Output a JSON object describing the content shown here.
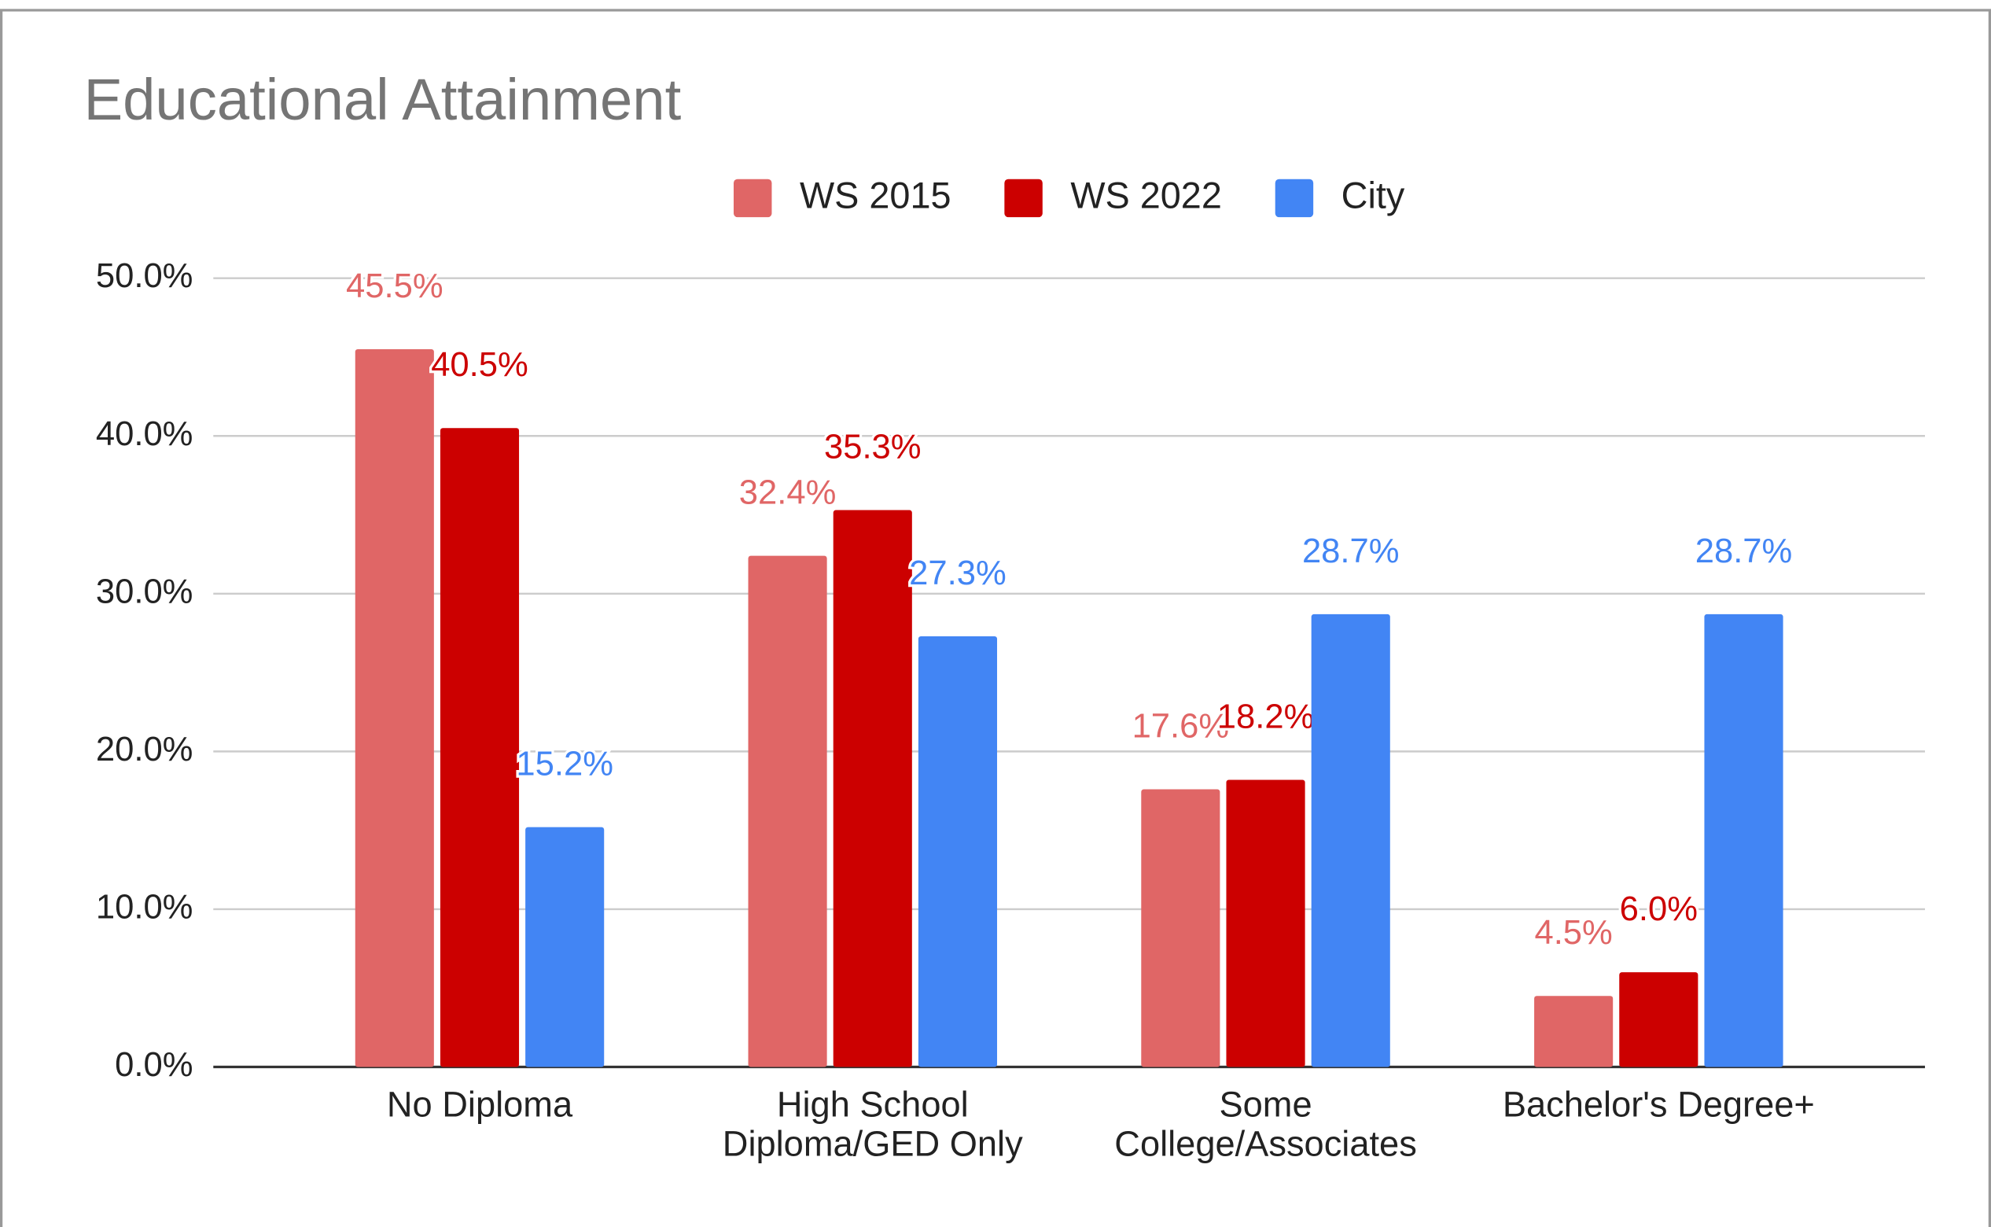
{
  "chart_data": {
    "type": "bar",
    "title": "Educational Attainment",
    "categories": [
      "No Diploma",
      "High School Diploma/GED Only",
      "Some College/Associates",
      "Bachelor's Degree+"
    ],
    "series": [
      {
        "name": "WS 2015",
        "color": "#e06666",
        "values": [
          45.5,
          32.4,
          17.6,
          4.5
        ],
        "value_labels": [
          "45.5%",
          "32.4%",
          "17.6%",
          "4.5%"
        ]
      },
      {
        "name": "WS 2022",
        "color": "#cc0000",
        "values": [
          40.5,
          35.3,
          18.2,
          6.0
        ],
        "value_labels": [
          "40.5%",
          "35.3%",
          "18.2%",
          "6.0%"
        ]
      },
      {
        "name": "City",
        "color": "#4285f4",
        "values": [
          15.2,
          27.3,
          28.7,
          28.7
        ],
        "value_labels": [
          "15.2%",
          "27.3%",
          "28.7%",
          "28.7%"
        ]
      }
    ],
    "ylim": [
      0,
      50
    ],
    "yticks": [
      {
        "value": 0,
        "label": "0.0%"
      },
      {
        "value": 10,
        "label": "10.0%"
      },
      {
        "value": 20,
        "label": "20.0%"
      },
      {
        "value": 30,
        "label": "30.0%"
      },
      {
        "value": 40,
        "label": "40.0%"
      },
      {
        "value": 50,
        "label": "50.0%"
      }
    ],
    "grid": true,
    "legend": "top"
  }
}
